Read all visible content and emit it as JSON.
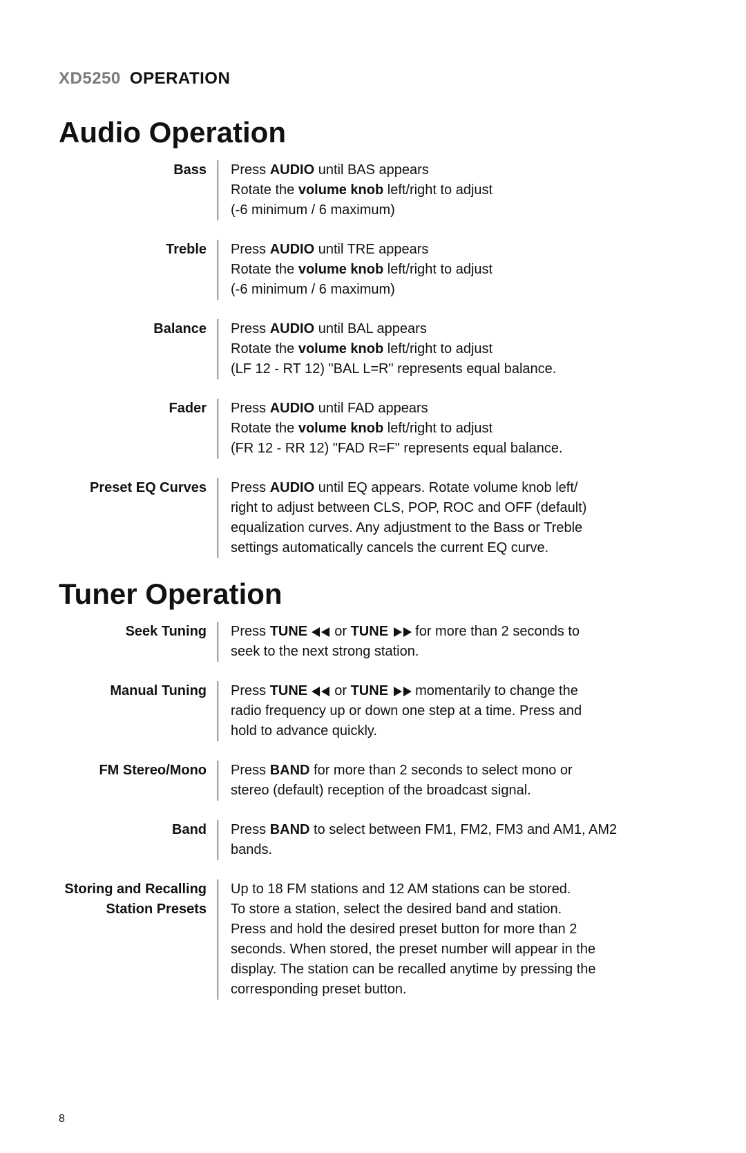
{
  "page": {
    "model": "XD5250",
    "operation_label": "OPERATION",
    "page_number": "8",
    "colors": {
      "text": "#111111",
      "muted": "#7a7a7a",
      "bg": "#ffffff",
      "rule": "#111111"
    },
    "font": {
      "family": "Arial",
      "title_size_pt": 32,
      "header_size_pt": 18,
      "body_size_pt": 15
    }
  },
  "sections": [
    {
      "title": "Audio Operation",
      "items": [
        {
          "label": "Bass",
          "lines": [
            [
              {
                "t": "Press "
              },
              {
                "t": "AUDIO",
                "b": true
              },
              {
                "t": " until BAS appears"
              }
            ],
            [
              {
                "t": "Rotate the "
              },
              {
                "t": "volume knob",
                "b": true
              },
              {
                "t": " left/right to adjust"
              }
            ],
            [
              {
                "t": "(-6 minimum / 6 maximum)"
              }
            ]
          ]
        },
        {
          "label": "Treble",
          "lines": [
            [
              {
                "t": "Press "
              },
              {
                "t": "AUDIO",
                "b": true
              },
              {
                "t": " until TRE appears"
              }
            ],
            [
              {
                "t": "Rotate the "
              },
              {
                "t": "volume knob",
                "b": true
              },
              {
                "t": " left/right to adjust"
              }
            ],
            [
              {
                "t": "(-6 minimum / 6 maximum)"
              }
            ]
          ]
        },
        {
          "label": "Balance",
          "lines": [
            [
              {
                "t": "Press "
              },
              {
                "t": "AUDIO",
                "b": true
              },
              {
                "t": " until BAL appears"
              }
            ],
            [
              {
                "t": "Rotate the "
              },
              {
                "t": "volume knob",
                "b": true
              },
              {
                "t": " left/right to adjust"
              }
            ],
            [
              {
                "t": "(LF 12 - RT 12) \"BAL L=R\" represents equal balance."
              }
            ]
          ]
        },
        {
          "label": "Fader",
          "lines": [
            [
              {
                "t": "Press "
              },
              {
                "t": "AUDIO",
                "b": true
              },
              {
                "t": " until FAD appears"
              }
            ],
            [
              {
                "t": "Rotate the "
              },
              {
                "t": "volume knob",
                "b": true
              },
              {
                "t": " left/right to adjust"
              }
            ],
            [
              {
                "t": "(FR 12 - RR 12) \"FAD R=F\" represents equal balance."
              }
            ]
          ]
        },
        {
          "label": "Preset EQ Curves",
          "lines": [
            [
              {
                "t": "Press "
              },
              {
                "t": "AUDIO",
                "b": true
              },
              {
                "t": " until EQ appears. Rotate volume knob left/"
              }
            ],
            [
              {
                "t": "right to adjust between CLS, POP, ROC and OFF (default)"
              }
            ],
            [
              {
                "t": "equalization curves. Any adjustment to the Bass or Treble"
              }
            ],
            [
              {
                "t": "settings automatically cancels the current EQ curve."
              }
            ]
          ]
        }
      ]
    },
    {
      "title": "Tuner Operation",
      "items": [
        {
          "label": "Seek Tuning",
          "lines": [
            [
              {
                "t": "Press "
              },
              {
                "t": "TUNE ",
                "b": true
              },
              {
                "icon": "rew"
              },
              {
                "t": " or "
              },
              {
                "t": "TUNE ",
                "b": true
              },
              {
                "icon": "ff"
              },
              {
                "t": " for more than 2 seconds to"
              }
            ],
            [
              {
                "t": "seek to the next strong station."
              }
            ]
          ]
        },
        {
          "label": "Manual Tuning",
          "lines": [
            [
              {
                "t": "Press "
              },
              {
                "t": "TUNE ",
                "b": true
              },
              {
                "icon": "rew"
              },
              {
                "t": " or "
              },
              {
                "t": "TUNE ",
                "b": true
              },
              {
                "icon": "ff"
              },
              {
                "t": " momentarily to change the"
              }
            ],
            [
              {
                "t": "radio frequency up or down one step at a time. Press and"
              }
            ],
            [
              {
                "t": "hold to advance quickly."
              }
            ]
          ]
        },
        {
          "label": "FM Stereo/Mono",
          "lines": [
            [
              {
                "t": "Press "
              },
              {
                "t": "BAND",
                "b": true
              },
              {
                "t": " for more than 2 seconds to select mono or"
              }
            ],
            [
              {
                "t": "stereo (default) reception of the broadcast signal."
              }
            ]
          ]
        },
        {
          "label": "Band",
          "lines": [
            [
              {
                "t": "Press "
              },
              {
                "t": "BAND",
                "b": true
              },
              {
                "t": " to select between FM1, FM2, FM3 and AM1, AM2"
              }
            ],
            [
              {
                "t": "bands."
              }
            ]
          ]
        },
        {
          "label": "Storing and Recalling\nStation Presets",
          "lines": [
            [
              {
                "t": "Up to 18 FM stations and 12 AM stations can be stored."
              }
            ],
            [
              {
                "t": "To store a station, select the desired band and station."
              }
            ],
            [
              {
                "t": "Press and hold the desired preset button for more than 2"
              }
            ],
            [
              {
                "t": "seconds. When stored, the preset number will appear in the"
              }
            ],
            [
              {
                "t": "display. The station can be recalled anytime by pressing the"
              }
            ],
            [
              {
                "t": "corresponding preset button."
              }
            ]
          ]
        }
      ]
    }
  ]
}
